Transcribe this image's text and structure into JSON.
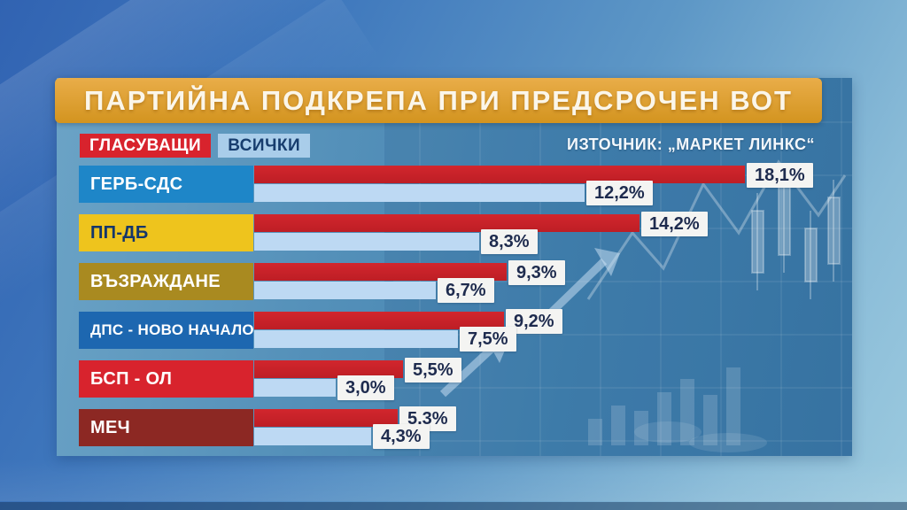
{
  "title": "ПАРТИЙНА ПОДКРЕПА ПРИ ПРЕДСРОЧЕН ВОТ",
  "source": "ИЗТОЧНИК: „МАРКЕТ ЛИНКС“",
  "legend": [
    {
      "label": "ГЛАСУВАЩИ",
      "color": "#d8232d",
      "text_color": "#ffffff"
    },
    {
      "label": "ВСИЧКИ",
      "color": "#a9cdea",
      "text_color": "#173d6e"
    }
  ],
  "colors": {
    "banner_orange": "#dd9e2f",
    "voters_bar_red": "#c8232b",
    "all_bar_blue": "#bdd9f3",
    "value_box_bg": "#f4f4f2",
    "value_text": "#1e2b4e"
  },
  "chart_data": {
    "type": "bar",
    "orientation": "horizontal",
    "title": "ПАРТИЙНА ПОДКРЕПА ПРИ ПРЕДСРОЧЕН ВОТ",
    "source": "ИЗТОЧНИК: „МАРКЕТ ЛИНКС“",
    "unit": "%",
    "xlim": [
      0,
      20
    ],
    "legend_position": "top-left",
    "grid": false,
    "value_labels_shown": true,
    "categories": [
      "ГЕРБ-СДС",
      "ПП-ДБ",
      "ВЪЗРАЖДАНЕ",
      "ДПС - НОВО НАЧАЛО",
      "БСП - ОЛ",
      "МЕЧ"
    ],
    "category_colors": [
      "#1e86c8",
      "#eec41d",
      "#a98a20",
      "#1d67b0",
      "#d8232d",
      "#8c2823"
    ],
    "category_text_colors": [
      "#ffffff",
      "#14366b",
      "#ffffff",
      "#ffffff",
      "#ffffff",
      "#ffffff"
    ],
    "series": [
      {
        "name": "ГЛАСУВАЩИ",
        "color": "#c8232b",
        "values": [
          18.1,
          14.2,
          9.3,
          9.2,
          5.5,
          5.3
        ],
        "labels": [
          "18,1%",
          "14,2%",
          "9,3%",
          "9,2%",
          "5,5%",
          "5,3%"
        ]
      },
      {
        "name": "ВСИЧКИ",
        "color": "#bdd9f3",
        "values": [
          12.2,
          8.3,
          6.7,
          7.5,
          3.0,
          4.3
        ],
        "labels": [
          "12,2%",
          "8,3%",
          "6,7%",
          "7,5%",
          "3,0%",
          "4,3%"
        ]
      }
    ]
  }
}
